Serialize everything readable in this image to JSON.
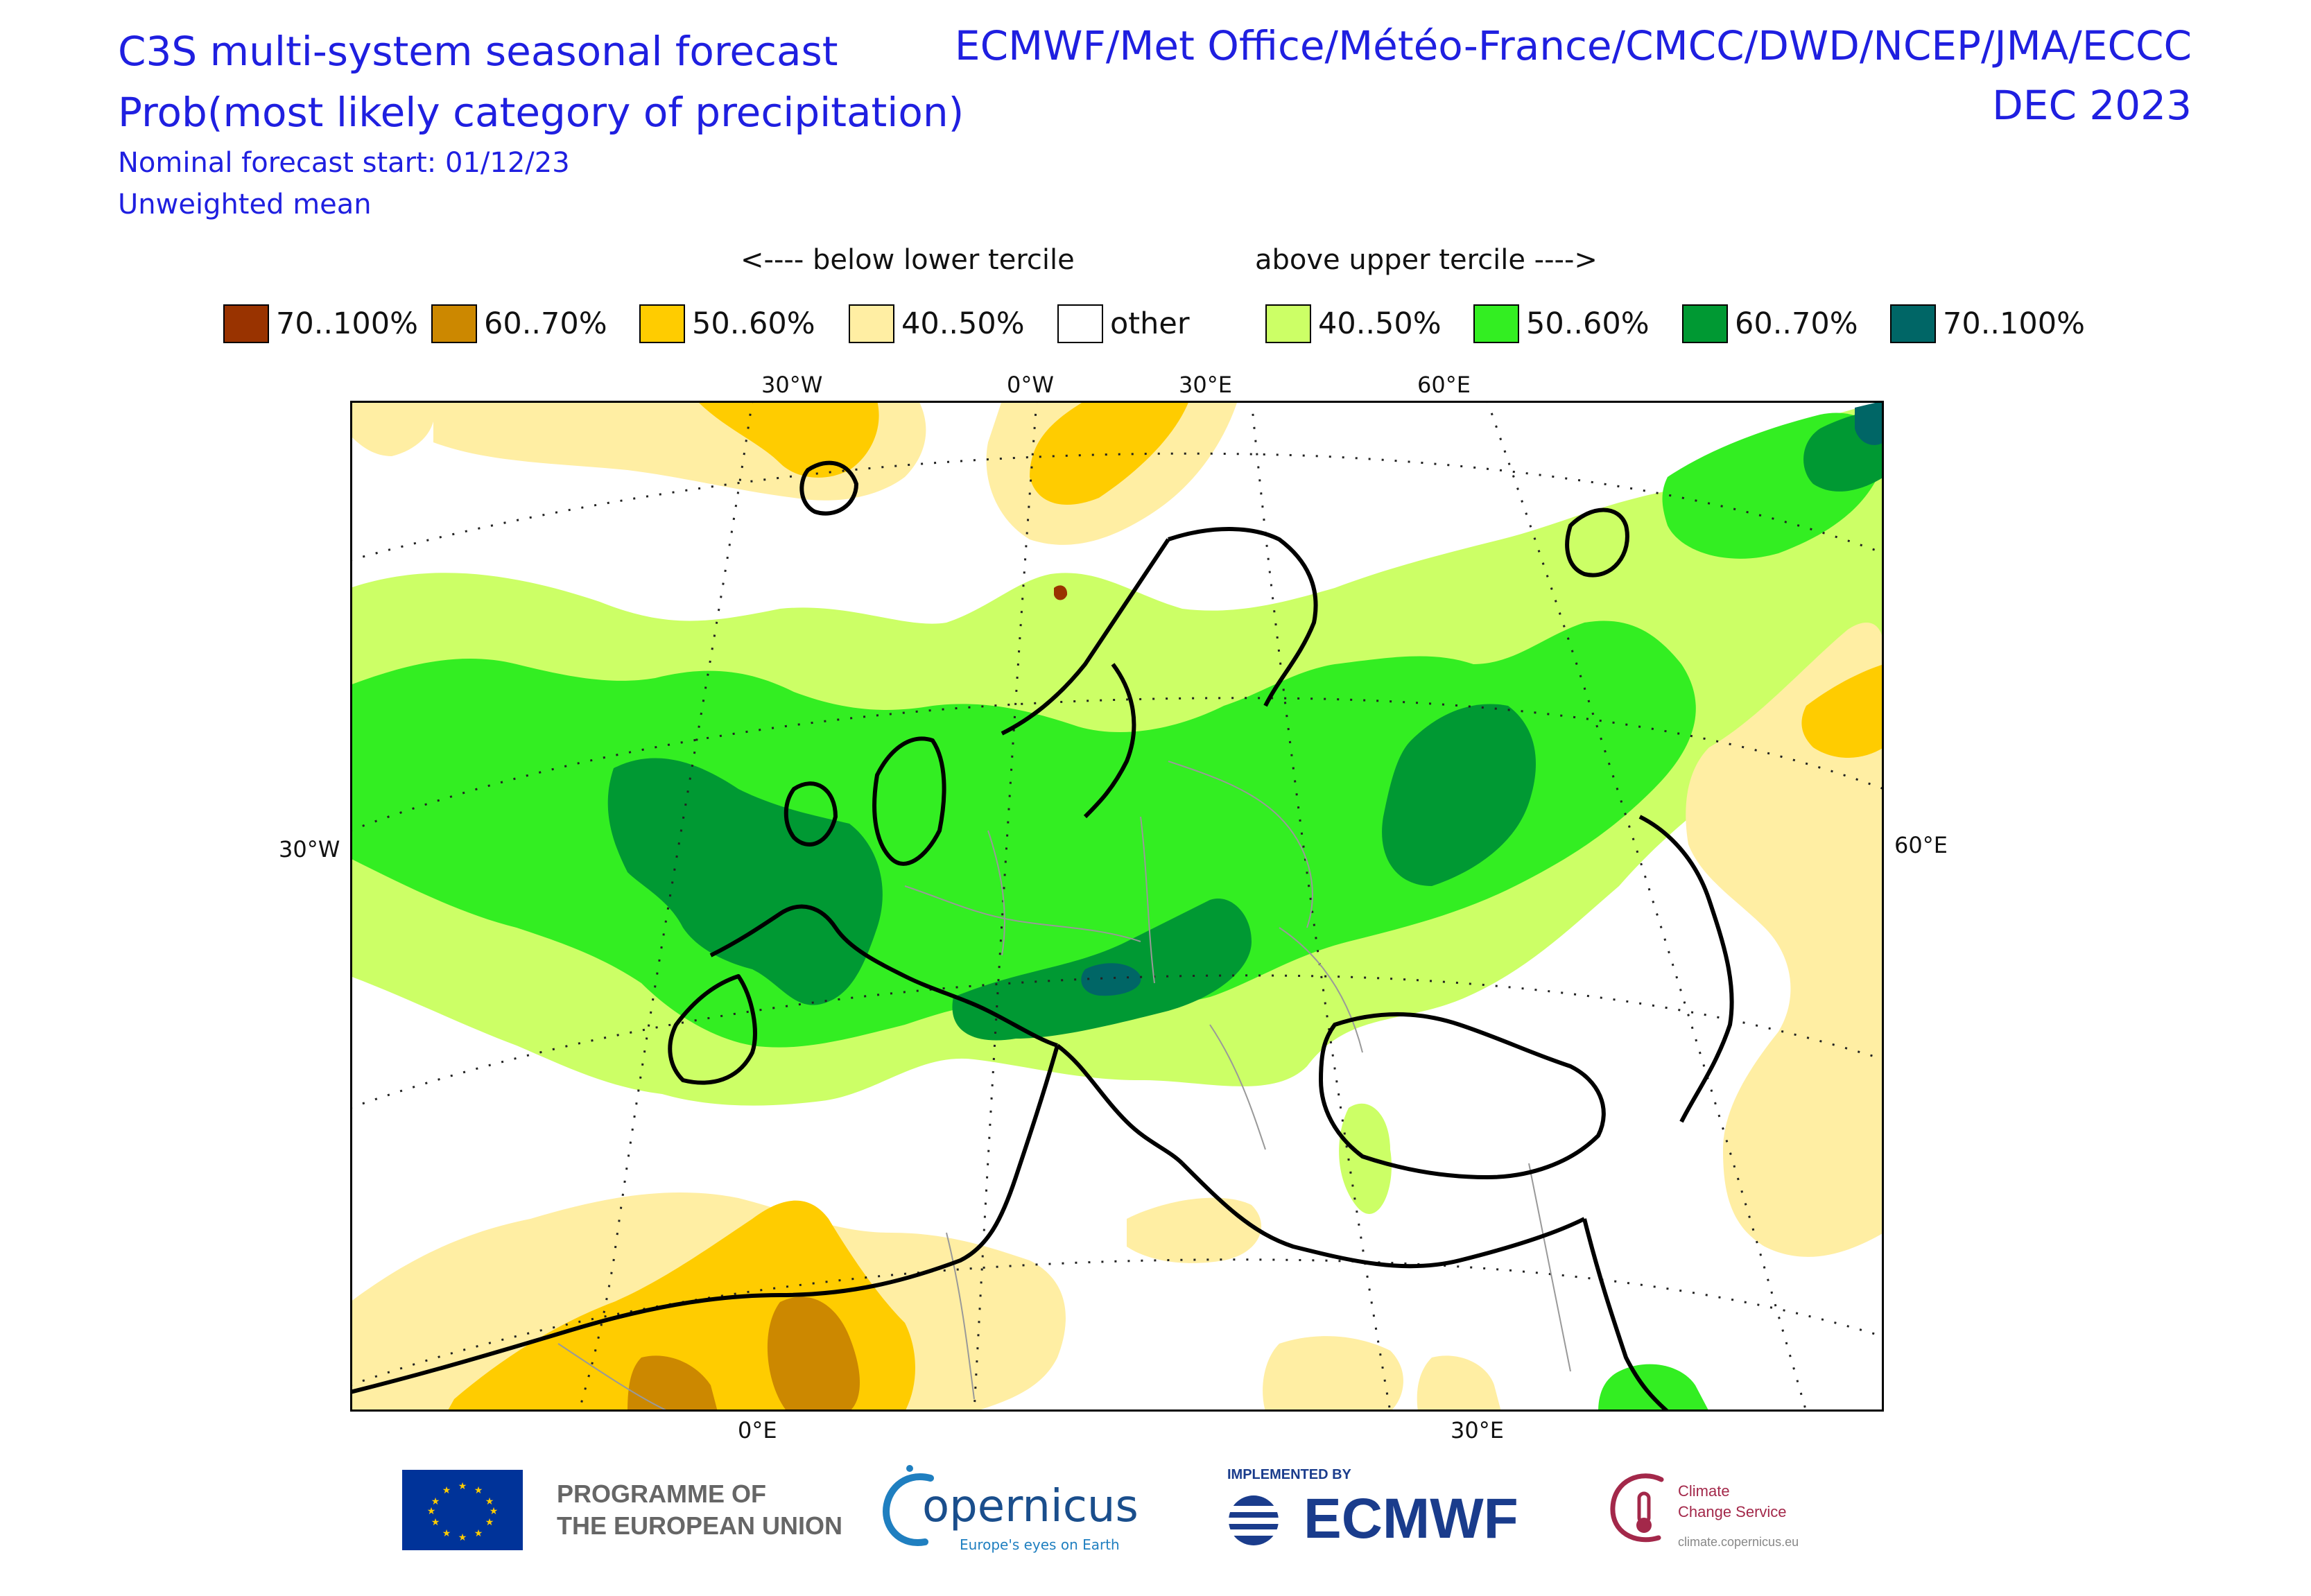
{
  "header": {
    "title_line1": "C3S multi-system seasonal forecast",
    "title_line2": "Prob(most likely category of precipitation)",
    "subtitle_line1": "Nominal forecast start: 01/12/23",
    "subtitle_line2": "Unweighted mean",
    "centres": "ECMWF/Met Office/Météo-France/CMCC/DWD/NCEP/JMA/ECCC",
    "month": "DEC 2023"
  },
  "legend": {
    "below_label": "<---- below lower tercile",
    "above_label": "above upper tercile ---->",
    "items": [
      {
        "label": "70..100%",
        "color": "#993300"
      },
      {
        "label": "60..70%",
        "color": "#cc8800"
      },
      {
        "label": "50..60%",
        "color": "#ffcc00"
      },
      {
        "label": "40..50%",
        "color": "#ffeea3"
      },
      {
        "label": "other",
        "color": "#ffffff"
      },
      {
        "label": "40..50%",
        "color": "#ccff66"
      },
      {
        "label": "50..60%",
        "color": "#33ee22"
      },
      {
        "label": "60..70%",
        "color": "#009933"
      },
      {
        "label": "70..100%",
        "color": "#006666"
      }
    ]
  },
  "map": {
    "top_ticks": [
      "30°W",
      "0°W",
      "30°E",
      "60°E"
    ],
    "left_tick": "30°W",
    "right_tick": "60°E",
    "bottom_ticks": [
      "0°E",
      "30°E"
    ]
  },
  "footer": {
    "programme_line1": "PROGRAMME OF",
    "programme_line2": "THE EUROPEAN UNION",
    "copernicus_name": "opernicus",
    "copernicus_tagline": "Europe's eyes on Earth",
    "implemented_by": "IMPLEMENTED BY",
    "ecmwf_name": "ECMWF",
    "c3s_line1": "Climate",
    "c3s_line2": "Change Service",
    "c3s_url": "climate.copernicus.eu"
  }
}
